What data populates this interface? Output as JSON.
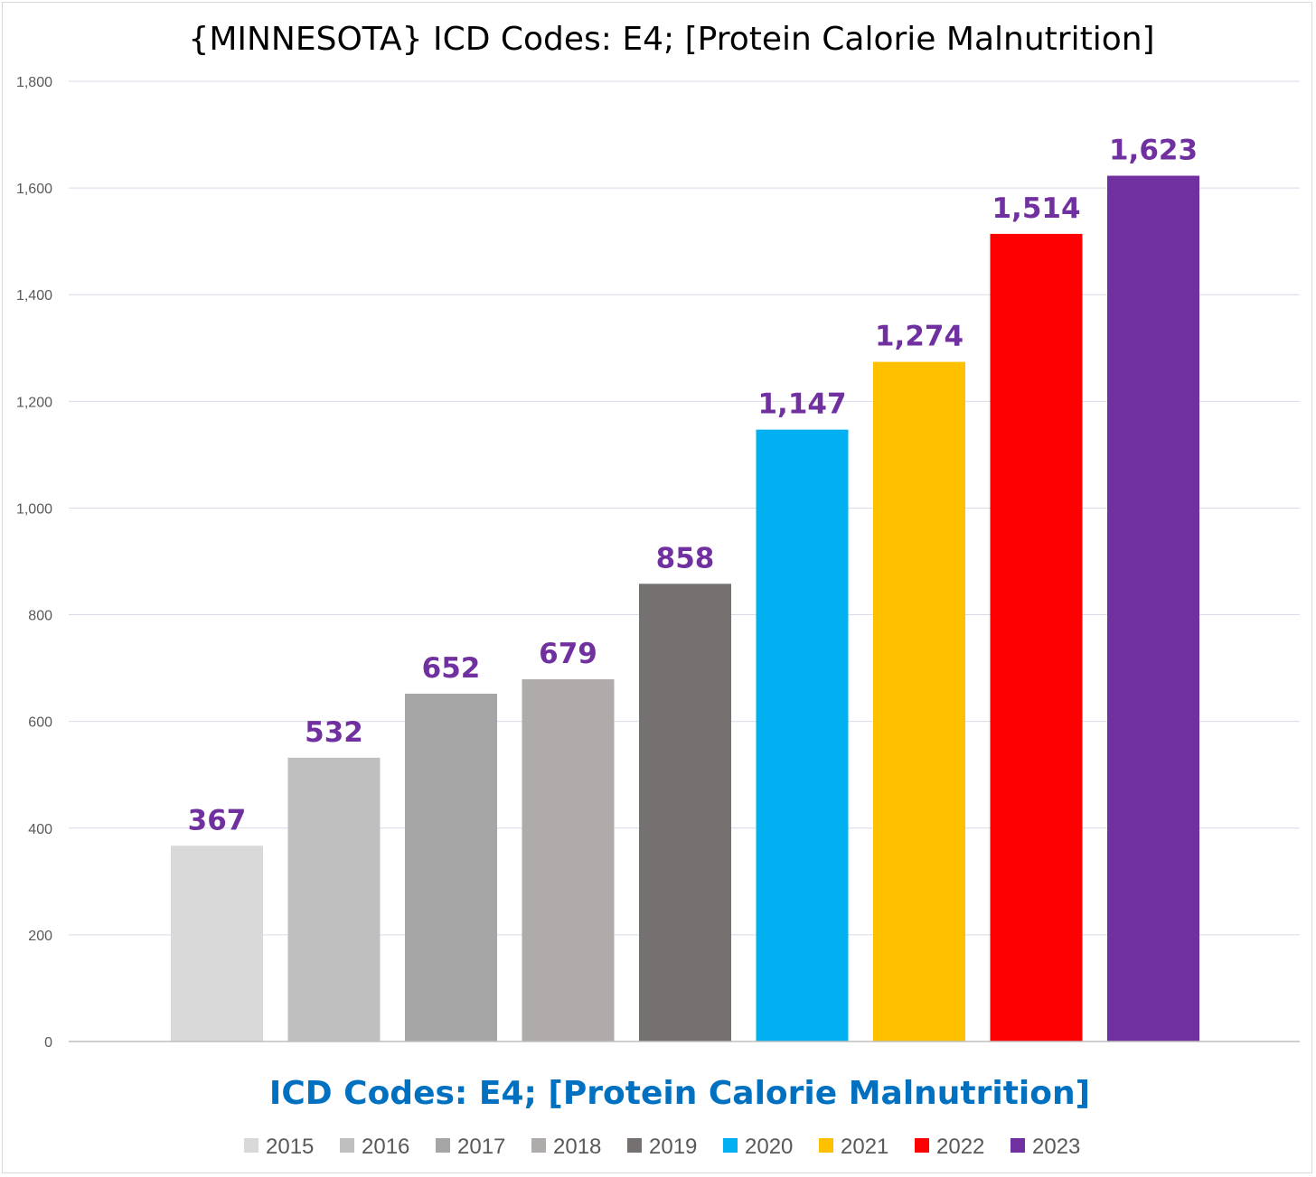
{
  "chart_data": {
    "type": "bar",
    "title": "{MINNESOTA}  ICD Codes: E4;  [Protein Calorie Malnutrition]",
    "xlabel": "ICD Codes: E4;  [Protein Calorie Malnutrition]",
    "ylabel": "",
    "ylim": [
      0,
      1800
    ],
    "y_ticks": [
      0,
      200,
      400,
      600,
      800,
      1000,
      1200,
      1400,
      1600,
      1800
    ],
    "y_tick_labels": [
      "0",
      "200",
      "400",
      "600",
      "800",
      "1,000",
      "1,200",
      "1,400",
      "1,600",
      "1,800"
    ],
    "grid": true,
    "legend_position": "bottom",
    "categories": [
      "ICD Codes: E4;  [Protein Calorie Malnutrition]"
    ],
    "series": [
      {
        "name": "2015",
        "values": [
          367
        ],
        "label": "367",
        "color": "#d9d9d9"
      },
      {
        "name": "2016",
        "values": [
          532
        ],
        "label": "532",
        "color": "#bfbfbf"
      },
      {
        "name": "2017",
        "values": [
          652
        ],
        "label": "652",
        "color": "#a5a5a5"
      },
      {
        "name": "2018",
        "values": [
          679
        ],
        "label": "679",
        "color": "#afabab"
      },
      {
        "name": "2019",
        "values": [
          858
        ],
        "label": "858",
        "color": "#767171"
      },
      {
        "name": "2020",
        "values": [
          1147
        ],
        "label": "1,147",
        "color": "#00b0f0"
      },
      {
        "name": "2021",
        "values": [
          1274
        ],
        "label": "1,274",
        "color": "#ffc000"
      },
      {
        "name": "2022",
        "values": [
          1514
        ],
        "label": "1,514",
        "color": "#ff0000"
      },
      {
        "name": "2023",
        "values": [
          1623
        ],
        "label": "1,623",
        "color": "#7030a0"
      }
    ],
    "colors": {
      "data_label": "#7030a0",
      "subtitle": "#0070c0",
      "gridline": "#d9d9ea",
      "axis": "#bfbfbf",
      "tick_text": "#595959"
    }
  }
}
